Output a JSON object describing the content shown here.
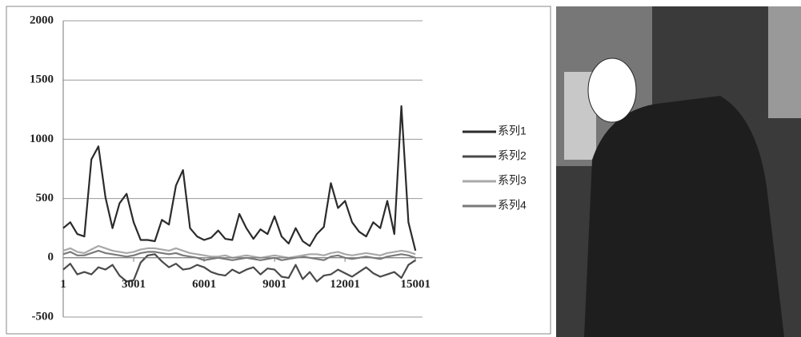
{
  "chart_data": {
    "type": "line",
    "x": [
      1,
      301,
      601,
      901,
      1201,
      1501,
      1801,
      2101,
      2401,
      2701,
      3001,
      3301,
      3601,
      3901,
      4201,
      4501,
      4801,
      5101,
      5401,
      5701,
      6001,
      6301,
      6601,
      6901,
      7201,
      7501,
      7801,
      8101,
      8401,
      8701,
      9001,
      9301,
      9601,
      9901,
      10201,
      10501,
      10801,
      11101,
      11401,
      11701,
      12001,
      12301,
      12601,
      12901,
      13201,
      13501,
      13801,
      14101,
      14401,
      14701,
      15001
    ],
    "series": [
      {
        "name": "系列1",
        "color": "#2b2b2b",
        "values": [
          250,
          300,
          200,
          180,
          830,
          940,
          510,
          250,
          460,
          540,
          300,
          150,
          150,
          140,
          320,
          280,
          610,
          740,
          250,
          180,
          150,
          170,
          230,
          160,
          150,
          370,
          250,
          160,
          240,
          200,
          350,
          180,
          120,
          250,
          140,
          100,
          200,
          260,
          630,
          420,
          480,
          300,
          220,
          180,
          300,
          250,
          480,
          200,
          1280,
          300,
          60
        ]
      },
      {
        "name": "系列2",
        "color": "#4a4a4a",
        "values": [
          -100,
          -50,
          -140,
          -120,
          -140,
          -80,
          -100,
          -60,
          -150,
          -200,
          -190,
          -40,
          20,
          30,
          -30,
          -80,
          -50,
          -100,
          -90,
          -60,
          -80,
          -120,
          -140,
          -150,
          -100,
          -130,
          -100,
          -80,
          -140,
          -90,
          -100,
          -160,
          -170,
          -60,
          -180,
          -120,
          -200,
          -150,
          -140,
          -100,
          -130,
          -160,
          -120,
          -80,
          -130,
          -160,
          -140,
          -120,
          -170,
          -60,
          -20
        ]
      },
      {
        "name": "系列3",
        "color": "#a8a8a8",
        "values": [
          60,
          80,
          50,
          40,
          70,
          100,
          80,
          60,
          50,
          40,
          50,
          70,
          80,
          80,
          70,
          60,
          80,
          60,
          40,
          30,
          20,
          10,
          10,
          20,
          0,
          10,
          20,
          10,
          0,
          10,
          20,
          10,
          0,
          10,
          20,
          30,
          30,
          20,
          40,
          50,
          30,
          20,
          30,
          40,
          30,
          20,
          40,
          50,
          60,
          50,
          30
        ]
      },
      {
        "name": "系列4",
        "color": "#7a7a7a",
        "values": [
          30,
          50,
          20,
          20,
          40,
          60,
          40,
          30,
          20,
          10,
          20,
          40,
          50,
          50,
          40,
          30,
          40,
          20,
          10,
          0,
          -20,
          -10,
          0,
          -10,
          -20,
          -10,
          0,
          -10,
          -20,
          -10,
          0,
          -20,
          -10,
          0,
          10,
          0,
          -10,
          -20,
          10,
          20,
          0,
          -10,
          0,
          10,
          0,
          -10,
          10,
          20,
          30,
          20,
          0
        ]
      }
    ],
    "xlim": [
      1,
      15301
    ],
    "xticks": [
      1,
      3001,
      6001,
      9001,
      12001,
      15001
    ],
    "ylim": [
      -500,
      2000
    ],
    "yticks": [
      -500,
      0,
      500,
      1000,
      1500,
      2000
    ],
    "grid": true,
    "legend": "right"
  }
}
